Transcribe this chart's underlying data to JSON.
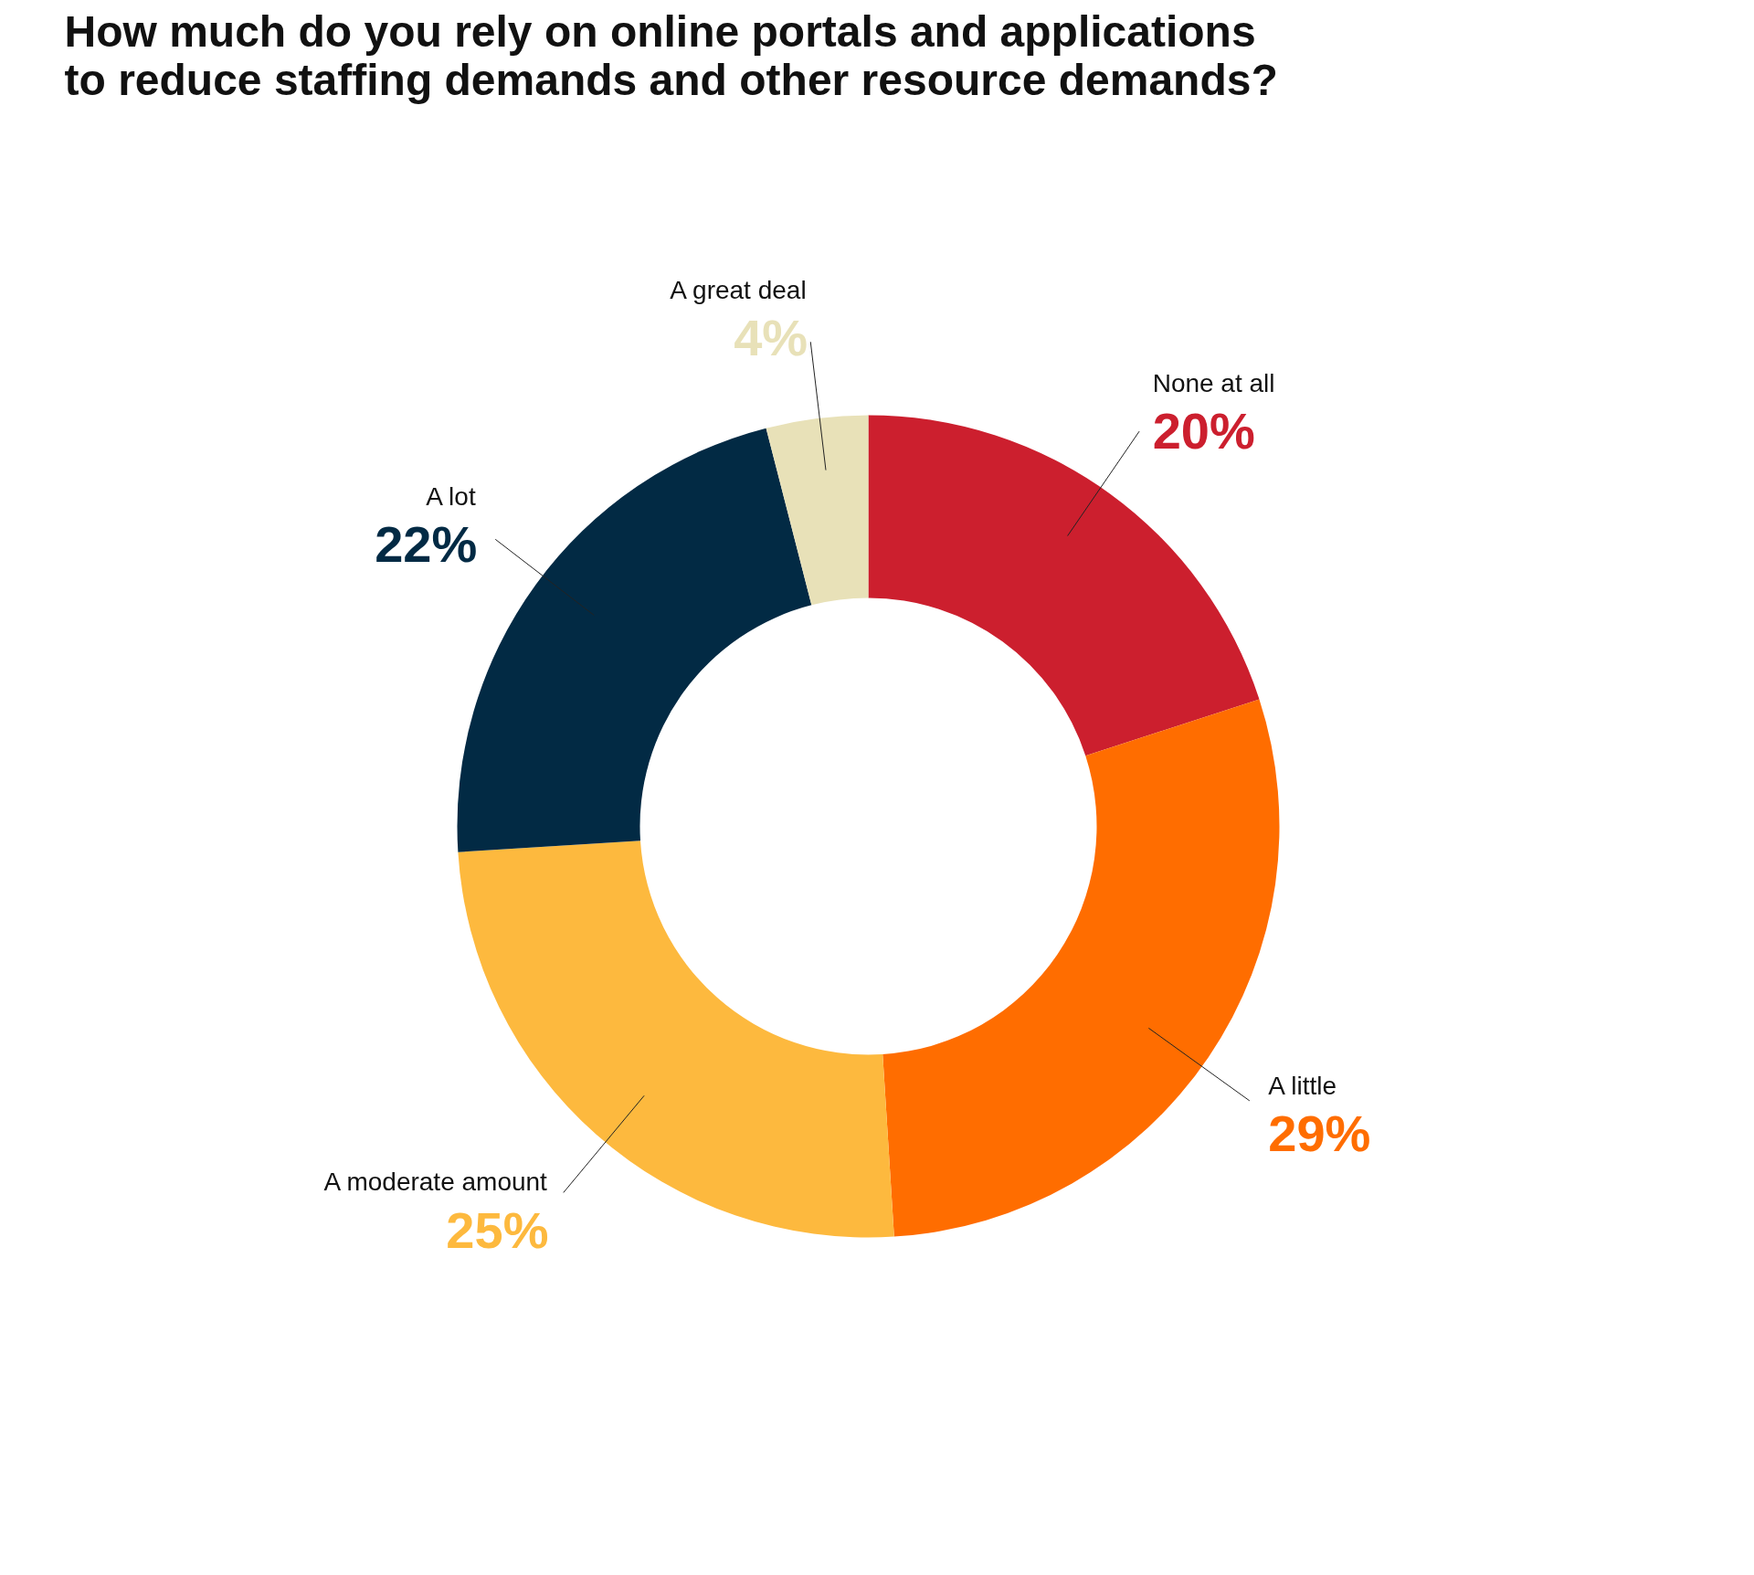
{
  "chart_data": {
    "type": "donut",
    "title": "How much do you rely on online portals and applications to reduce staffing demands and other resource demands?",
    "categories": [
      "None at all",
      "A little",
      "A moderate amount",
      "A lot",
      "A great deal"
    ],
    "values": [
      20,
      29,
      25,
      22,
      4
    ],
    "value_labels": [
      "20%",
      "29%",
      "25%",
      "22%",
      "4%"
    ],
    "colors": [
      "#cc1f2e",
      "#ff6d00",
      "#fdb93e",
      "#022a44",
      "#e8e1b8"
    ]
  }
}
